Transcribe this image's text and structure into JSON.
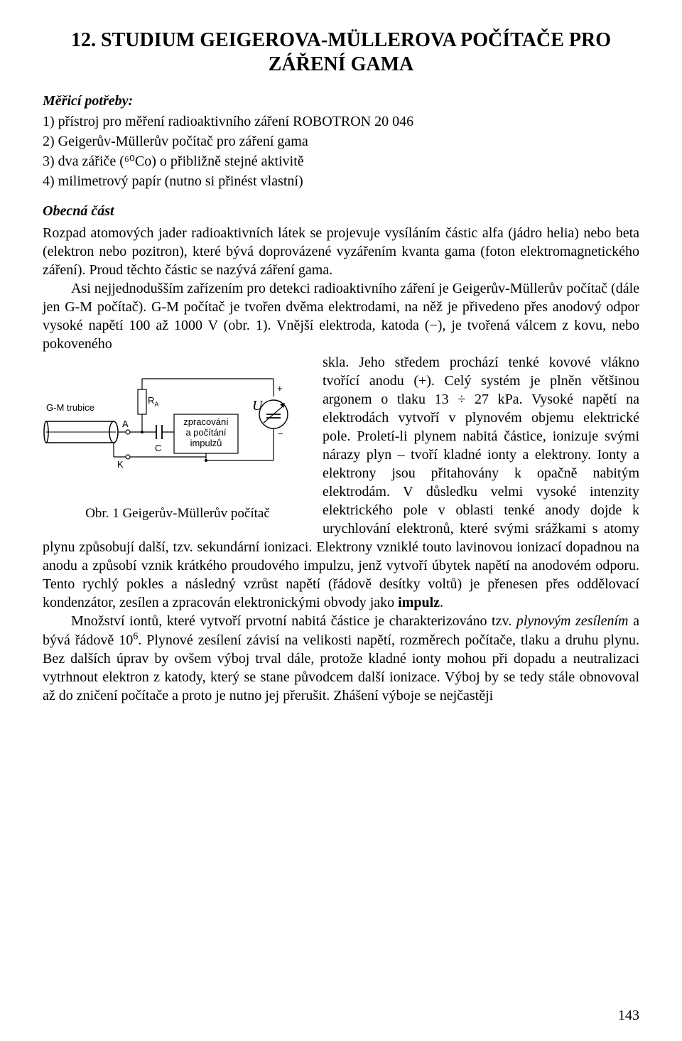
{
  "title": "12. STUDIUM GEIGEROVA-MÜLLEROVA POČÍTAČE PRO ZÁŘENÍ GAMA",
  "sections": {
    "equipment": {
      "label": "Měřicí potřeby:",
      "items": [
        "1) přístroj pro měření radioaktivního záření ROBOTRON 20 046",
        "2) Geigerův-Müllerův počítač pro záření gama",
        "3) dva zářiče (⁶⁰Co) o přibližně stejné aktivitě",
        "4) milimetrový papír (nutno si přinést vlastní)"
      ]
    },
    "general": {
      "label": "Obecná část",
      "p1_html": "Rozpad atomových jader radioaktivních látek se projevuje vysíláním částic alfa (jádro helia) nebo beta (elektron nebo pozitron), které bývá doprovázené vyzářením kvanta gama (foton elektromagnetického záření). Proud těchto částic se nazývá záření gama.",
      "p2_html": "Asi nejjednodušším zařízením pro detekci radioaktivního záření je Geigerův-Müllerův počítač (dále jen G-M počítač). G-M počítač je tvořen dvěma elektrodami, na něž je přivedeno přes anodový odpor vysoké napětí 100 až 1000 V (obr. 1). Vnější elektroda, katoda (−), je tvořená válcem z kovu, nebo pokoveného",
      "p3_html": "skla. Jeho středem prochází tenké kovové vlákno tvořící anodu (+). Celý systém je plněn většinou argonem o tlaku 13 ÷ 27 kPa. Vysoké napětí na elektrodách vytvoří v plynovém objemu elektrické pole. Proletí-li plynem nabitá částice, ionizuje svými nárazy plyn – tvoří kladné ionty a elektrony. Ionty a elektrony jsou přitahovány k opačně nabitým elektrodám. V důsledku velmi vysoké intenzity elektrického pole v oblasti tenké anody dojde k urychlování elektronů, které svými srážkami s atomy plynu způsobují další, tzv. sekundární ionizaci. Elektrony vzniklé touto lavinovou ionizací dopadnou na anodu a způsobí vznik krátkého proudového impulzu, jenž vytvoří úbytek napětí na anodovém odporu. Tento rychlý pokles a následný vzrůst napětí (řádově desítky voltů) je přenesen přes oddělovací kondenzátor, zesílen a zpracován elektronickými obvody jako <b>impulz</b>.",
      "p4_html": "Množství iontů, které vytvoří prvotní nabitá částice je charakterizováno tzv. <i>plynovým zesílením</i> a bývá řádově 10<sup>6</sup>. Plynové zesílení závisí na velikosti napětí, rozměrech počítače, tlaku a druhu plynu. Bez dalších úprav by ovšem výboj trval dále, protože kladné ionty mohou při dopadu a neutralizaci vytrhnout elektron z katody, který se stane původcem další ionizace. Výboj by se tedy stále obnovoval až do zničení počítače a proto je nutno jej přerušit. Zhášení výboje se nejčastěji"
    },
    "figure": {
      "caption": "Obr. 1  Geigerův-Müllerův počítač",
      "labels": {
        "gm_tube": "G-M trubice",
        "ra": "R",
        "ra_sub": "A",
        "a": "A",
        "k": "K",
        "c": "C",
        "u": "U",
        "plus": "+",
        "dash": "−",
        "box_line1": "zpracování",
        "box_line2": "a počítání",
        "box_line3": "impulzů"
      },
      "colors": {
        "stroke": "#000000",
        "fill": "#ffffff"
      }
    }
  },
  "page_number": "143",
  "page_colors": {
    "bg": "#ffffff",
    "text": "#000000"
  }
}
